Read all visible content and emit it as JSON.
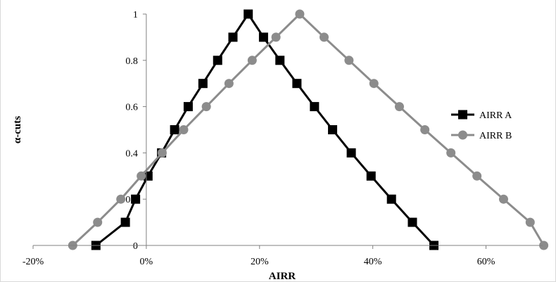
{
  "chart_data": {
    "type": "line",
    "title": "",
    "xlabel": "AIRR",
    "ylabel": "α-cuts",
    "xlim": [
      -0.2,
      0.7
    ],
    "ylim": [
      0,
      1
    ],
    "x_ticks": [
      -0.2,
      0,
      0.2,
      0.4,
      0.6
    ],
    "x_tick_labels": [
      "-20%",
      "0%",
      "20%",
      "40%",
      "60%"
    ],
    "y_ticks": [
      0,
      0.2,
      0.4,
      0.6,
      0.8,
      1
    ],
    "y_tick_labels": [
      "0",
      "0.2",
      "0.4",
      "0.6",
      "0.8",
      "1"
    ],
    "grid": false,
    "legend_position": "right",
    "series": [
      {
        "name": "AIRR A",
        "color": "#000000",
        "marker": "square",
        "points": [
          [
            -0.089,
            0.0
          ],
          [
            -0.037,
            0.1
          ],
          [
            -0.019,
            0.2
          ],
          [
            0.003,
            0.3
          ],
          [
            0.027,
            0.4
          ],
          [
            0.05,
            0.5
          ],
          [
            0.074,
            0.6
          ],
          [
            0.1,
            0.7
          ],
          [
            0.126,
            0.8
          ],
          [
            0.153,
            0.9
          ],
          [
            0.18,
            1.0
          ],
          [
            0.207,
            0.9
          ],
          [
            0.236,
            0.8
          ],
          [
            0.266,
            0.7
          ],
          [
            0.297,
            0.6
          ],
          [
            0.329,
            0.5
          ],
          [
            0.362,
            0.4
          ],
          [
            0.397,
            0.3
          ],
          [
            0.433,
            0.2
          ],
          [
            0.47,
            0.1
          ],
          [
            0.508,
            0.0
          ]
        ]
      },
      {
        "name": "AIRR B",
        "color": "#8c8c8c",
        "marker": "circle",
        "points": [
          [
            -0.13,
            0.0
          ],
          [
            -0.086,
            0.1
          ],
          [
            -0.045,
            0.2
          ],
          [
            -0.009,
            0.3
          ],
          [
            0.028,
            0.4
          ],
          [
            0.066,
            0.5
          ],
          [
            0.106,
            0.6
          ],
          [
            0.146,
            0.7
          ],
          [
            0.187,
            0.8
          ],
          [
            0.229,
            0.9
          ],
          [
            0.271,
            1.0
          ],
          [
            0.314,
            0.9
          ],
          [
            0.358,
            0.8
          ],
          [
            0.402,
            0.7
          ],
          [
            0.447,
            0.6
          ],
          [
            0.492,
            0.5
          ],
          [
            0.538,
            0.4
          ],
          [
            0.584,
            0.3
          ],
          [
            0.631,
            0.2
          ],
          [
            0.678,
            0.1
          ],
          [
            0.702,
            0.0
          ]
        ]
      }
    ]
  }
}
